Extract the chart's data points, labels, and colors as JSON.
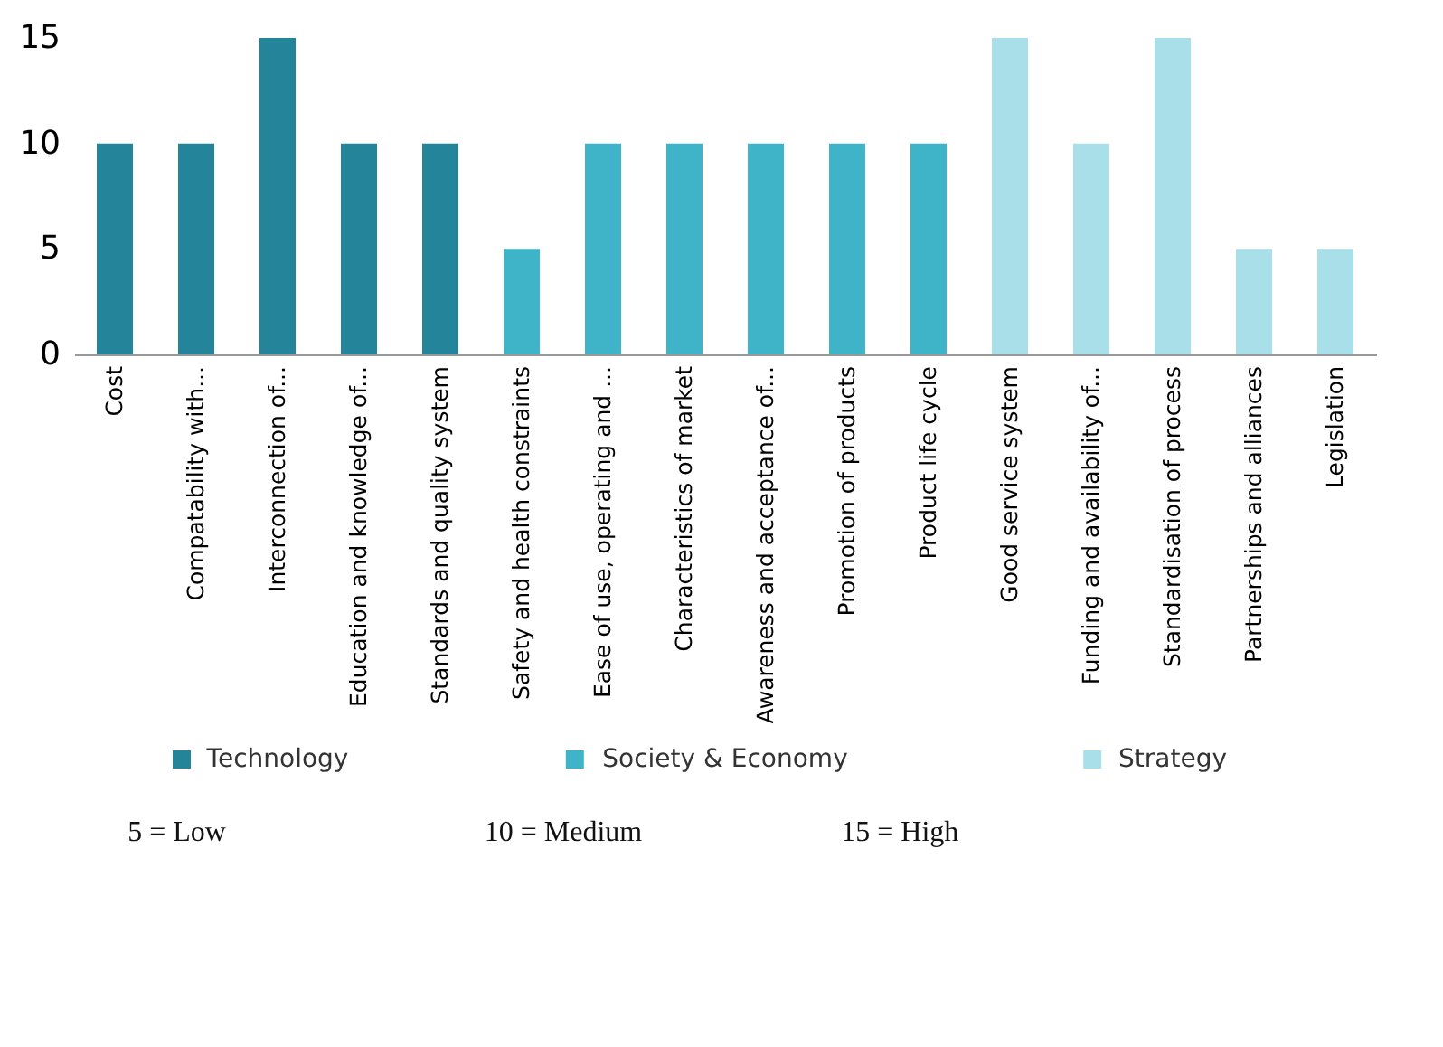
{
  "chart_data": {
    "type": "bar",
    "categories": [
      "Cost",
      "Compatability with...",
      "Interconnection of...",
      "Education and knowledge of...",
      "Standards and quality system",
      "Safety and health constraints",
      "Ease of use, operating and ...",
      "Characteristics of market",
      "Awareness and acceptance of...",
      "Promotion of products",
      "Product life cycle",
      "Good service system",
      "Funding and availability of...",
      "Standardisation of process",
      "Partnerships and alliances",
      "Legislation"
    ],
    "series": [
      {
        "name": "Technology",
        "color": "#23849a",
        "values": [
          10,
          10,
          15,
          10,
          10,
          null,
          null,
          null,
          null,
          null,
          null,
          null,
          null,
          null,
          null,
          null
        ]
      },
      {
        "name": "Society & Economy",
        "color": "#3fb3c8",
        "values": [
          null,
          null,
          null,
          null,
          null,
          5,
          10,
          10,
          10,
          10,
          10,
          null,
          null,
          null,
          null,
          null
        ]
      },
      {
        "name": "Strategy",
        "color": "#a9dfe9",
        "values": [
          null,
          null,
          null,
          null,
          null,
          null,
          null,
          null,
          null,
          null,
          null,
          15,
          10,
          15,
          5,
          5
        ]
      }
    ],
    "ylim": [
      0,
      15
    ],
    "yticks": [
      0,
      5,
      10,
      15
    ],
    "grid": false,
    "legend": "bottom",
    "annotations": [
      "5 = Low",
      "10 = Medium",
      "15 = High"
    ]
  }
}
